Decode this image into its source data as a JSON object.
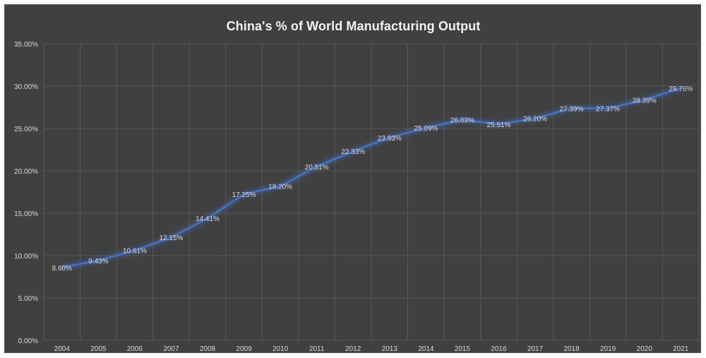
{
  "chart_data": {
    "type": "line",
    "title": "China's % of World Manufacturing Output",
    "xlabel": "",
    "ylabel": "",
    "categories": [
      "2004",
      "2005",
      "2006",
      "2007",
      "2008",
      "2009",
      "2010",
      "2011",
      "2012",
      "2013",
      "2014",
      "2015",
      "2016",
      "2017",
      "2018",
      "2019",
      "2020",
      "2021"
    ],
    "series": [
      {
        "values": [
          8.6,
          9.43,
          10.61,
          12.15,
          14.41,
          17.25,
          18.2,
          20.51,
          22.33,
          23.93,
          25.09,
          26.03,
          25.51,
          26.2,
          27.39,
          27.37,
          28.39,
          29.76
        ],
        "labels": [
          "8.60%",
          "9.43%",
          "10.61%",
          "12.15%",
          "14.41%",
          "17.25%",
          "18.20%",
          "20.51%",
          "22.33%",
          "23.93%",
          "25.09%",
          "26.03%",
          "25.51%",
          "26.20%",
          "27.39%",
          "27.37%",
          "28.39%",
          "29.76%"
        ],
        "color": "#4472c4"
      }
    ],
    "ylim": [
      0,
      35
    ],
    "yticks": [
      "0.00%",
      "5.00%",
      "10.00%",
      "15.00%",
      "20.00%",
      "25.00%",
      "30.00%",
      "35.00%"
    ],
    "grid": true,
    "legend": "none",
    "colors": {
      "background": "#404040",
      "gridline": "#595959",
      "text": "#d9d9d9",
      "title": "#f2f2f2"
    }
  }
}
